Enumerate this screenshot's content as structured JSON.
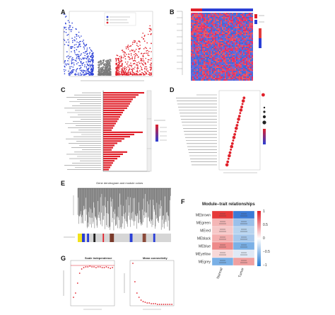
{
  "panels": {
    "A": "A",
    "B": "B",
    "C": "C",
    "D": "D",
    "E": "E",
    "F": "F",
    "G": "G"
  },
  "panel_e": {
    "title": "Gene dendrogram and module colors"
  },
  "panel_f": {
    "title": "Module–trait relationships",
    "modules": [
      "MEbrown",
      "MEgreen",
      "MEred",
      "MEblack",
      "MEblue",
      "MEyellow",
      "MEgrey"
    ],
    "columns": [
      "Normal",
      "Tumor"
    ],
    "scale_ticks": [
      "1",
      "0.5",
      "0",
      "−0.5",
      "−1"
    ]
  },
  "panel_g": {
    "left_title": "Scale independence",
    "right_title": "Mean connectivity"
  },
  "colors": {
    "red": "#e0202a",
    "blue": "#2a3fd6",
    "heat_low": "#3a5fd0",
    "heat_high": "#e33a3a"
  }
}
